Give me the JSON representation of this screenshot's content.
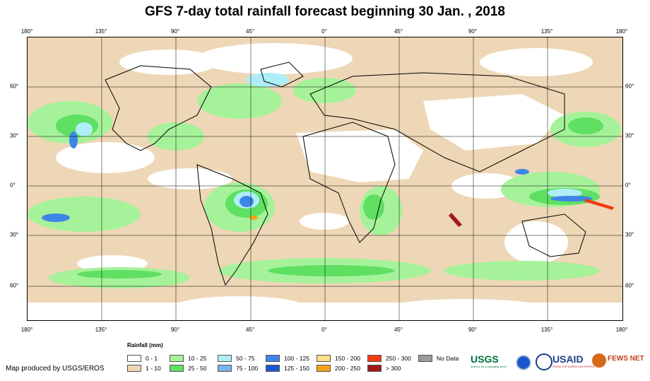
{
  "title": "GFS 7-day total rainfall forecast beginning 30 Jan. , 2018",
  "longitude_labels": [
    "180°",
    "135°",
    "90°",
    "45°",
    "0°",
    "45°",
    "90°",
    "135°",
    "180°"
  ],
  "latitude_labels": [
    "60°",
    "30°",
    "0°",
    "30°",
    "60°"
  ],
  "legend": {
    "title": "Rainfall (mm)",
    "items": [
      {
        "label": "0 - 1",
        "color": "#ffffff"
      },
      {
        "label": "1 - 10",
        "color": "#eed7b6"
      },
      {
        "label": "10 - 25",
        "color": "#a6f29a"
      },
      {
        "label": "25 - 50",
        "color": "#5fe063"
      },
      {
        "label": "50 - 75",
        "color": "#aeeef8"
      },
      {
        "label": "75 - 100",
        "color": "#7ab4ec"
      },
      {
        "label": "100 - 125",
        "color": "#3e86e6"
      },
      {
        "label": "125 - 150",
        "color": "#1c56cf"
      },
      {
        "label": "150 - 200",
        "color": "#fde08a"
      },
      {
        "label": "200 - 250",
        "color": "#f7a21c"
      },
      {
        "label": "250 - 300",
        "color": "#f53a13"
      },
      {
        "label": "> 300",
        "color": "#a01818"
      },
      {
        "label": "No Data",
        "color": "#9a9a9a"
      }
    ]
  },
  "credit": "Map produced by USGS/EROS",
  "logos": {
    "usgs": "USGS",
    "usgs_tagline": "science for a changing world",
    "usaid": "USAID",
    "usaid_tagline": "FROM THE AMERICAN PEOPLE",
    "fewsnet": "FEWS NET"
  }
}
